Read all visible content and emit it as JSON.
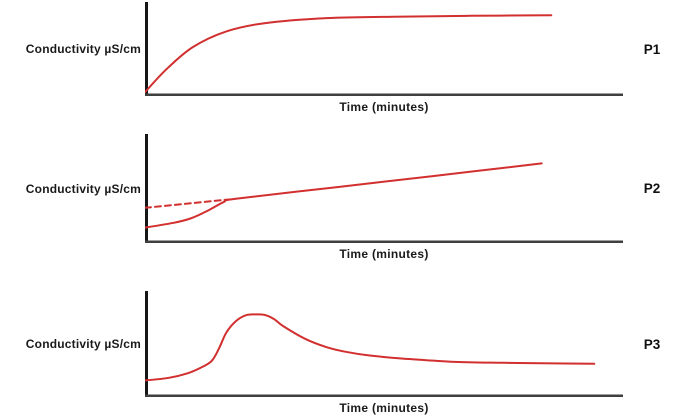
{
  "accent_color": "#d22f2f",
  "chart_data": [
    {
      "type": "line",
      "id": "P1",
      "ylabel": "Conductivity µS/cm",
      "xlabel": "Time (minutes)",
      "axis_range": {
        "x_pct": [
          0,
          100
        ],
        "y_pct": [
          0,
          100
        ]
      },
      "grid": false,
      "legend": "none",
      "series": [
        {
          "name": "conductivity-curve-p1",
          "style": "solid",
          "shape": "rapid rise saturating to a plateau",
          "points_pct": [
            [
              0,
              2
            ],
            [
              4.5,
              27
            ],
            [
              10,
              51
            ],
            [
              17,
              68
            ],
            [
              25,
              77
            ],
            [
              38,
              82.5
            ],
            [
              52,
              84
            ],
            [
              68,
              85
            ],
            [
              85,
              85.5
            ]
          ]
        }
      ]
    },
    {
      "type": "line",
      "id": "P2",
      "ylabel": "Conductivity µS/cm",
      "xlabel": "Time (minutes)",
      "axis_range": {
        "x_pct": [
          0,
          100
        ],
        "y_pct": [
          0,
          100
        ]
      },
      "grid": false,
      "legend": "none",
      "series": [
        {
          "name": "conductivity-curve-p2",
          "style": "solid",
          "shape": "slow start, S-shaped rise, then steady linear increase",
          "points_pct": [
            [
              0,
              12.5
            ],
            [
              6,
              17
            ],
            [
              9.5,
              21
            ],
            [
              13,
              28
            ],
            [
              16.5,
              36.5
            ],
            [
              19,
              39.5
            ],
            [
              40,
              50.3
            ],
            [
              60,
              60.6
            ],
            [
              83,
              72.5
            ]
          ]
        },
        {
          "name": "extrapolation-dashed-line",
          "style": "dashed",
          "shape": "straight dashed extrapolation back to the y-axis",
          "points_pct": [
            [
              0,
              31
            ],
            [
              17.5,
              38.8
            ]
          ]
        }
      ]
    },
    {
      "type": "line",
      "id": "P3",
      "ylabel": "Conductivity µS/cm",
      "xlabel": "Time (minutes)",
      "axis_range": {
        "x_pct": [
          0,
          100
        ],
        "y_pct": [
          0,
          100
        ]
      },
      "grid": false,
      "legend": "none",
      "series": [
        {
          "name": "conductivity-curve-p3",
          "style": "solid",
          "shape": "rise to a rounded peak then decay to a plateau",
          "points_pct": [
            [
              0,
              14
            ],
            [
              5,
              16.5
            ],
            [
              9,
              21
            ],
            [
              12,
              27
            ],
            [
              14,
              33
            ],
            [
              15.5,
              45
            ],
            [
              17,
              60
            ],
            [
              19,
              71
            ],
            [
              21,
              76.5
            ],
            [
              23,
              77.5
            ],
            [
              25,
              77
            ],
            [
              27,
              73
            ],
            [
              29,
              66
            ],
            [
              33.5,
              54
            ],
            [
              38,
              46
            ],
            [
              42,
              41.5
            ],
            [
              47,
              38
            ],
            [
              54,
              35
            ],
            [
              64,
              32
            ],
            [
              75,
              31
            ],
            [
              88,
              30.3
            ],
            [
              94,
              30
            ]
          ]
        }
      ]
    }
  ]
}
